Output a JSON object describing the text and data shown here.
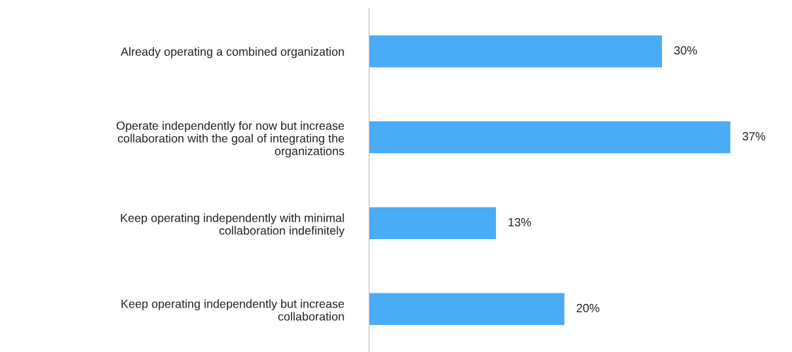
{
  "chart_data": {
    "type": "bar",
    "orientation": "horizontal",
    "categories": [
      "Already operating a combined organization",
      "Operate independently for now but increase\ncollaboration with the goal of integrating the\norganizations",
      "Keep operating independently with minimal\ncollaboration indefinitely",
      "Keep operating independently but increase\ncollaboration"
    ],
    "values": [
      30,
      37,
      13,
      20
    ],
    "value_labels": [
      "30%",
      "37%",
      "13%",
      "20%"
    ],
    "color": "#4aabf7",
    "grid": false,
    "legend": false
  }
}
